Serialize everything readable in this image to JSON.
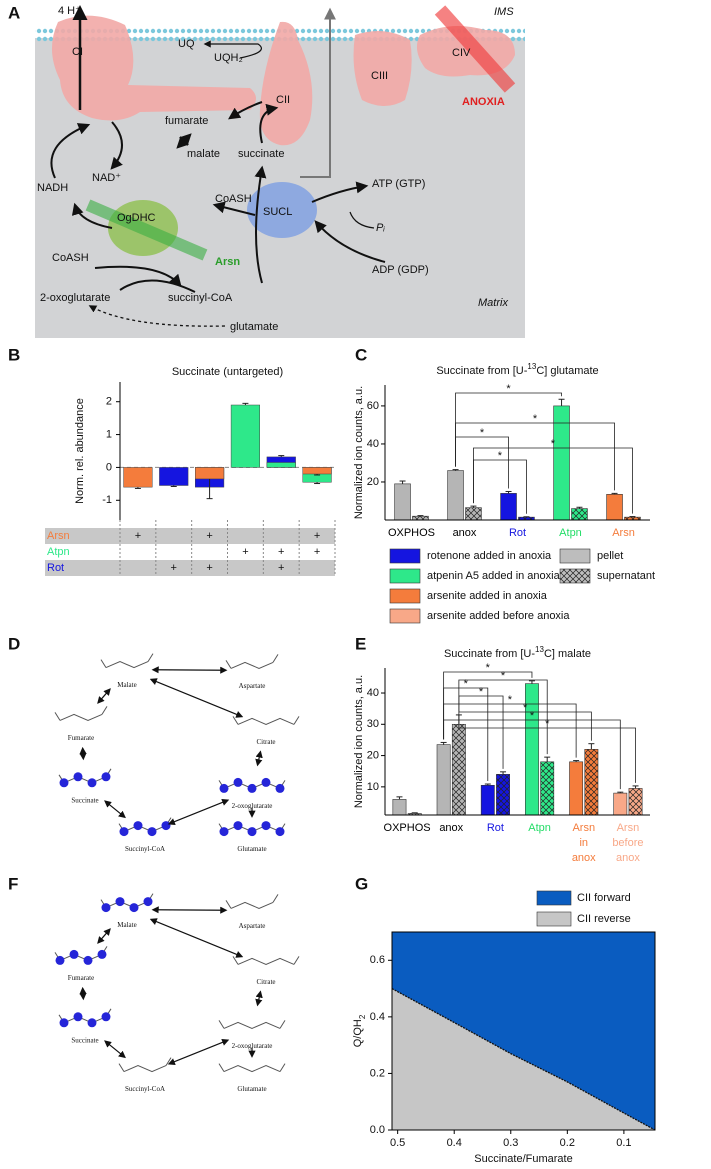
{
  "panel_labels": [
    "A",
    "B",
    "C",
    "D",
    "E",
    "F",
    "G"
  ],
  "diagram_a": {
    "h_plus": "4 H⁺",
    "ims": "IMS",
    "ci": "CI",
    "uq": "UQ",
    "uqh2": "UQH₂",
    "cii": "CII",
    "ciii": "CIII",
    "civ": "CIV",
    "anoxia": "ANOXIA",
    "fumarate": "fumarate",
    "malate": "malate",
    "succinate": "succinate",
    "nadh": "NADH",
    "nad": "NAD⁺",
    "ogdhc": "OgDHC",
    "arsn": "Arsn",
    "coash_right": "CoASH",
    "sucl": "SUCL",
    "atp": "ATP (GTP)",
    "pi": "Pᵢ",
    "adp": "ADP (GDP)",
    "coash_left": "CoASH",
    "oxoglutarate": "2-oxoglutarate",
    "succinyl_coa": "succinyl-CoA",
    "glutamate": "glutamate",
    "matrix": "Matrix"
  },
  "chart_data": [
    {
      "type": "overlay_bar",
      "title": "Succinate (untargeted)",
      "y_label": "Norm. rel. abundance",
      "ylim": [
        -1.6,
        2.6
      ],
      "yticks": [
        -1,
        0,
        1,
        2
      ],
      "zero_line": true,
      "treatments": [
        {
          "name": "Arsn",
          "color": "#f47c3c",
          "values": [
            -0.6,
            null,
            -0.35,
            null,
            null,
            -0.2
          ],
          "errors": [
            0.04,
            null,
            0.6,
            null,
            null,
            0.03
          ],
          "marks": [
            "+",
            null,
            "+",
            null,
            null,
            "+"
          ]
        },
        {
          "name": "Atpn",
          "color": "#2ee88a",
          "values": [
            null,
            null,
            null,
            1.9,
            0.15,
            -0.45
          ],
          "errors": [
            null,
            null,
            null,
            0.05,
            null,
            0.04
          ],
          "marks": [
            null,
            null,
            null,
            "+",
            "+",
            "+"
          ]
        },
        {
          "name": "Rot",
          "color": "#1515e0",
          "values": [
            null,
            -0.55,
            -0.6,
            null,
            0.32,
            null
          ],
          "errors": [
            null,
            0.03,
            null,
            null,
            0.04,
            null
          ],
          "marks": [
            null,
            "+",
            "+",
            null,
            "+",
            null
          ]
        }
      ]
    },
    {
      "type": "grouped_bar",
      "title": [
        {
          "text": "Succinate from [U-"
        },
        {
          "text": "13",
          "sup": true
        },
        {
          "text": "C] glutamate"
        }
      ],
      "y_label": "Normalized ion counts, a.u.",
      "categories": [
        "OXPHOS",
        "anox",
        "Rot",
        "Atpn",
        "Arsn"
      ],
      "category_colors": [
        "#000000",
        "#000000",
        "#1515e0",
        "#22dd66",
        "#f47c3c"
      ],
      "bar_colors": [
        "#b5b5b5",
        "#b5b5b5",
        "#1515e0",
        "#2ee88a",
        "#f47c3c"
      ],
      "ylim": [
        0,
        71
      ],
      "yticks": [
        20,
        40,
        60
      ],
      "series": [
        {
          "name": "pellet",
          "color": "#bdbdbd",
          "pattern": "solid",
          "values": [
            19,
            26,
            14,
            60,
            13.5
          ],
          "errors": [
            1.5,
            0.5,
            1,
            3.5,
            0.5
          ]
        },
        {
          "name": "supernatant",
          "color": "#bdbdbd",
          "pattern": "hatch",
          "values": [
            2,
            6.5,
            1.5,
            6,
            1.5
          ],
          "errors": [
            0.3,
            0.8,
            0.2,
            0.7,
            0.3
          ]
        }
      ],
      "significance": [
        "*",
        "*",
        "*",
        "*",
        "*"
      ],
      "legend": [
        {
          "name": "rotenone added in anoxia",
          "color": "#1515e0"
        },
        {
          "name": "atpenin A5 added in anoxia",
          "color": "#2ee88a"
        },
        {
          "name": "arsenite added in anoxia",
          "color": "#f47c3c"
        },
        {
          "name": "arsenite added before anoxia",
          "color": "#f8a888"
        }
      ]
    },
    {
      "type": "grouped_bar",
      "title": [
        {
          "text": "Succinate from [U-"
        },
        {
          "text": "13",
          "sup": true
        },
        {
          "text": "C] malate"
        }
      ],
      "y_label": "Normalized ion counts, a.u.",
      "categories": [
        [
          "OXPHOS"
        ],
        [
          "anox"
        ],
        [
          "Rot"
        ],
        [
          "Atpn"
        ],
        [
          "Arsn",
          "in",
          "anox"
        ],
        [
          "Arsn",
          "before",
          "anox"
        ]
      ],
      "category_colors": [
        "#000000",
        "#000000",
        "#1515e0",
        "#22dd66",
        "#f47c3c",
        "#f8a888"
      ],
      "bar_colors": [
        "#b5b5b5",
        "#b5b5b5",
        "#1515e0",
        "#2ee88a",
        "#f47c3c",
        "#f8a888"
      ],
      "ylim": [
        1,
        48
      ],
      "yticks": [
        10,
        20,
        30,
        40
      ],
      "series": [
        {
          "name": "pellet",
          "pattern": "solid",
          "values": [
            6,
            23.5,
            10.5,
            43,
            18,
            8
          ],
          "errors": [
            0.8,
            0.7,
            0.4,
            0.9,
            0.4,
            0.3
          ]
        },
        {
          "name": "supernatant",
          "pattern": "hatch",
          "values": [
            1.5,
            30,
            14,
            18,
            22,
            9.5
          ],
          "errors": [
            0.2,
            3,
            0.8,
            1.5,
            1.8,
            0.8
          ]
        }
      ],
      "significance": [
        "*",
        "*",
        "*",
        "*",
        "*",
        "*",
        "*",
        "*"
      ]
    },
    {
      "type": "area",
      "x_label": "Succinate/Fumarate",
      "y_label": [
        {
          "text": "Q/QH"
        },
        {
          "text": "2",
          "sub": true
        }
      ],
      "x": [
        0.51,
        0.4,
        0.3,
        0.2,
        0.1,
        0.045
      ],
      "series": [
        {
          "name": "CII forward",
          "color": "#0a5cc0"
        },
        {
          "name": "CII reverse",
          "color": "#c6c6c6",
          "values": [
            0.5,
            0.38,
            0.27,
            0.17,
            0.06,
            0
          ]
        }
      ],
      "xlim": [
        0.51,
        0.045
      ],
      "ylim": [
        0,
        0.7
      ],
      "xticks": [
        0.5,
        0.4,
        0.3,
        0.2,
        0.1
      ],
      "yticks": [
        {
          "value": 0,
          "label": "0.0"
        },
        0.2,
        0.4,
        0.6
      ],
      "legend_position": "top-right"
    }
  ],
  "diagram_d": {
    "molecules": [
      "Aspartate",
      "Malate",
      "Citrate",
      "Fumarate",
      "Succinate",
      "2-oxoglutarate",
      "Succinyl-CoA",
      "Glutamate"
    ]
  },
  "diagram_f": {
    "molecules": [
      "Aspartate",
      "Malate",
      "Citrate",
      "Fumarate",
      "Succinate",
      "2-oxoglutarate",
      "Succinyl-CoA",
      "Glutamate"
    ]
  }
}
